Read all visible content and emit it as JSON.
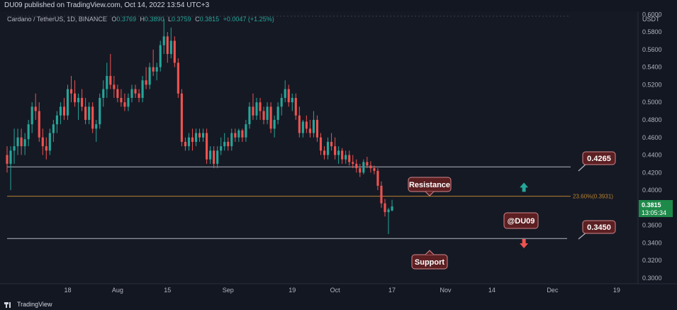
{
  "header": {
    "published": "DU09 published on TradingView.com, Oct 14, 2022 13:54 UTC+3"
  },
  "legend": {
    "symbol": "Cardano / TetherUS, 1D, BINANCE",
    "open_label": "O",
    "open": "0.3769",
    "high_label": "H",
    "high": "0.3890",
    "low_label": "L",
    "low": "0.3759",
    "close_label": "C",
    "close": "0.3815",
    "change": "+0.0047 (+1.25%)"
  },
  "footer": {
    "brand": "TradingView"
  },
  "colors": {
    "background": "#151924",
    "up": "#26a69a",
    "down": "#ef5350",
    "level_line": "#b2b5be",
    "fib_line": "#b7822f",
    "label_fill": "#5c1f22",
    "label_border": "#d4878a",
    "price_badge": "#1e8a4a"
  },
  "chart_data": {
    "type": "candlestick",
    "y_axis_title": "USDT",
    "ylim": [
      0.2935,
      0.6035
    ],
    "y_ticks": [
      0.3,
      0.32,
      0.34,
      0.36,
      0.38,
      0.4,
      0.42,
      0.44,
      0.46,
      0.48,
      0.5,
      0.52,
      0.54,
      0.56,
      0.58,
      0.6
    ],
    "y_tick_labels": [
      "0.3000",
      "0.3200",
      "0.3400",
      "0.3600",
      "0.3800",
      "0.4000",
      "0.4200",
      "0.4400",
      "0.4600",
      "0.4800",
      "0.5000",
      "0.5200",
      "0.5400",
      "0.5600",
      "0.5800",
      "0.6000"
    ],
    "x_axis": {
      "start_date": "2022-07-01",
      "end_date": "2022-12-25",
      "ticks": [
        {
          "label": "18",
          "date": "2022-07-18"
        },
        {
          "label": "Aug",
          "date": "2022-08-01"
        },
        {
          "label": "15",
          "date": "2022-08-15"
        },
        {
          "label": "Sep",
          "date": "2022-09-01"
        },
        {
          "label": "19",
          "date": "2022-09-19"
        },
        {
          "label": "Oct",
          "date": "2022-10-01"
        },
        {
          "label": "17",
          "date": "2022-10-17"
        },
        {
          "label": "Nov",
          "date": "2022-11-01"
        },
        {
          "label": "14",
          "date": "2022-11-14"
        },
        {
          "label": "Dec",
          "date": "2022-12-01"
        },
        {
          "label": "19",
          "date": "2022-12-19"
        }
      ]
    },
    "candles": [
      [
        "2022-07-01",
        0.44,
        0.45,
        0.42,
        0.43
      ],
      [
        "2022-07-02",
        0.43,
        0.45,
        0.4,
        0.445
      ],
      [
        "2022-07-03",
        0.445,
        0.47,
        0.43,
        0.45
      ],
      [
        "2022-07-04",
        0.45,
        0.47,
        0.44,
        0.46
      ],
      [
        "2022-07-05",
        0.46,
        0.47,
        0.44,
        0.45
      ],
      [
        "2022-07-06",
        0.45,
        0.465,
        0.44,
        0.458
      ],
      [
        "2022-07-07",
        0.458,
        0.48,
        0.45,
        0.475
      ],
      [
        "2022-07-08",
        0.475,
        0.5,
        0.465,
        0.495
      ],
      [
        "2022-07-09",
        0.495,
        0.51,
        0.48,
        0.49
      ],
      [
        "2022-07-10",
        0.49,
        0.5,
        0.455,
        0.46
      ],
      [
        "2022-07-11",
        0.46,
        0.47,
        0.44,
        0.45
      ],
      [
        "2022-07-12",
        0.45,
        0.46,
        0.435,
        0.445
      ],
      [
        "2022-07-13",
        0.445,
        0.47,
        0.44,
        0.465
      ],
      [
        "2022-07-14",
        0.465,
        0.48,
        0.455,
        0.475
      ],
      [
        "2022-07-15",
        0.475,
        0.49,
        0.465,
        0.485
      ],
      [
        "2022-07-16",
        0.485,
        0.5,
        0.475,
        0.495
      ],
      [
        "2022-07-17",
        0.495,
        0.505,
        0.48,
        0.485
      ],
      [
        "2022-07-18",
        0.485,
        0.52,
        0.48,
        0.515
      ],
      [
        "2022-07-19",
        0.515,
        0.53,
        0.5,
        0.51
      ],
      [
        "2022-07-20",
        0.51,
        0.525,
        0.495,
        0.5
      ],
      [
        "2022-07-21",
        0.5,
        0.51,
        0.48,
        0.505
      ],
      [
        "2022-07-22",
        0.505,
        0.515,
        0.49,
        0.495
      ],
      [
        "2022-07-23",
        0.495,
        0.505,
        0.475,
        0.48
      ],
      [
        "2022-07-24",
        0.48,
        0.5,
        0.475,
        0.495
      ],
      [
        "2022-07-25",
        0.495,
        0.5,
        0.465,
        0.47
      ],
      [
        "2022-07-26",
        0.47,
        0.48,
        0.455,
        0.475
      ],
      [
        "2022-07-27",
        0.475,
        0.51,
        0.47,
        0.505
      ],
      [
        "2022-07-28",
        0.505,
        0.525,
        0.495,
        0.515
      ],
      [
        "2022-07-29",
        0.515,
        0.545,
        0.505,
        0.53
      ],
      [
        "2022-07-30",
        0.53,
        0.555,
        0.515,
        0.52
      ],
      [
        "2022-07-31",
        0.52,
        0.53,
        0.505,
        0.515
      ],
      [
        "2022-08-01",
        0.515,
        0.52,
        0.5,
        0.505
      ],
      [
        "2022-08-02",
        0.505,
        0.515,
        0.495,
        0.5
      ],
      [
        "2022-08-03",
        0.5,
        0.51,
        0.49,
        0.495
      ],
      [
        "2022-08-04",
        0.495,
        0.51,
        0.49,
        0.505
      ],
      [
        "2022-08-05",
        0.505,
        0.52,
        0.5,
        0.515
      ],
      [
        "2022-08-06",
        0.515,
        0.52,
        0.505,
        0.51
      ],
      [
        "2022-08-07",
        0.51,
        0.515,
        0.5,
        0.505
      ],
      [
        "2022-08-08",
        0.505,
        0.53,
        0.5,
        0.525
      ],
      [
        "2022-08-09",
        0.525,
        0.54,
        0.515,
        0.52
      ],
      [
        "2022-08-10",
        0.52,
        0.545,
        0.515,
        0.54
      ],
      [
        "2022-08-11",
        0.54,
        0.56,
        0.53,
        0.535
      ],
      [
        "2022-08-12",
        0.535,
        0.545,
        0.525,
        0.54
      ],
      [
        "2022-08-13",
        0.54,
        0.57,
        0.535,
        0.565
      ],
      [
        "2022-08-14",
        0.565,
        0.595,
        0.555,
        0.575
      ],
      [
        "2022-08-15",
        0.575,
        0.58,
        0.545,
        0.555
      ],
      [
        "2022-08-16",
        0.555,
        0.585,
        0.55,
        0.57
      ],
      [
        "2022-08-17",
        0.57,
        0.575,
        0.54,
        0.545
      ],
      [
        "2022-08-18",
        0.545,
        0.55,
        0.505,
        0.51
      ],
      [
        "2022-08-19",
        0.51,
        0.515,
        0.45,
        0.455
      ],
      [
        "2022-08-20",
        0.455,
        0.46,
        0.445,
        0.45
      ],
      [
        "2022-08-21",
        0.45,
        0.465,
        0.445,
        0.46
      ],
      [
        "2022-08-22",
        0.46,
        0.47,
        0.445,
        0.455
      ],
      [
        "2022-08-23",
        0.455,
        0.47,
        0.45,
        0.465
      ],
      [
        "2022-08-24",
        0.465,
        0.47,
        0.455,
        0.46
      ],
      [
        "2022-08-25",
        0.46,
        0.47,
        0.455,
        0.465
      ],
      [
        "2022-08-26",
        0.465,
        0.47,
        0.43,
        0.435
      ],
      [
        "2022-08-27",
        0.435,
        0.45,
        0.43,
        0.445
      ],
      [
        "2022-08-28",
        0.445,
        0.45,
        0.425,
        0.43
      ],
      [
        "2022-08-29",
        0.43,
        0.45,
        0.425,
        0.445
      ],
      [
        "2022-08-30",
        0.445,
        0.46,
        0.44,
        0.45
      ],
      [
        "2022-08-31",
        0.45,
        0.465,
        0.445,
        0.455
      ],
      [
        "2022-09-01",
        0.455,
        0.46,
        0.445,
        0.45
      ],
      [
        "2022-09-02",
        0.45,
        0.47,
        0.445,
        0.465
      ],
      [
        "2022-09-03",
        0.465,
        0.47,
        0.455,
        0.46
      ],
      [
        "2022-09-04",
        0.46,
        0.47,
        0.455,
        0.468
      ],
      [
        "2022-09-05",
        0.468,
        0.47,
        0.455,
        0.46
      ],
      [
        "2022-09-06",
        0.46,
        0.48,
        0.455,
        0.475
      ],
      [
        "2022-09-07",
        0.475,
        0.5,
        0.47,
        0.495
      ],
      [
        "2022-09-08",
        0.495,
        0.51,
        0.48,
        0.485
      ],
      [
        "2022-09-09",
        0.485,
        0.505,
        0.48,
        0.5
      ],
      [
        "2022-09-10",
        0.5,
        0.505,
        0.48,
        0.49
      ],
      [
        "2022-09-11",
        0.49,
        0.495,
        0.475,
        0.48
      ],
      [
        "2022-09-12",
        0.48,
        0.5,
        0.475,
        0.495
      ],
      [
        "2022-09-13",
        0.495,
        0.5,
        0.465,
        0.47
      ],
      [
        "2022-09-14",
        0.47,
        0.485,
        0.46,
        0.48
      ],
      [
        "2022-09-15",
        0.48,
        0.5,
        0.475,
        0.495
      ],
      [
        "2022-09-16",
        0.495,
        0.51,
        0.485,
        0.505
      ],
      [
        "2022-09-17",
        0.505,
        0.525,
        0.5,
        0.515
      ],
      [
        "2022-09-18",
        0.515,
        0.52,
        0.495,
        0.5
      ],
      [
        "2022-09-19",
        0.5,
        0.51,
        0.49,
        0.505
      ],
      [
        "2022-09-20",
        0.505,
        0.51,
        0.48,
        0.485
      ],
      [
        "2022-09-21",
        0.485,
        0.495,
        0.46,
        0.465
      ],
      [
        "2022-09-22",
        0.465,
        0.48,
        0.46,
        0.478
      ],
      [
        "2022-09-23",
        0.478,
        0.485,
        0.465,
        0.47
      ],
      [
        "2022-09-24",
        0.47,
        0.48,
        0.46,
        0.465
      ],
      [
        "2022-09-25",
        0.465,
        0.49,
        0.46,
        0.48
      ],
      [
        "2022-09-26",
        0.48,
        0.485,
        0.455,
        0.46
      ],
      [
        "2022-09-27",
        0.46,
        0.465,
        0.44,
        0.445
      ],
      [
        "2022-09-28",
        0.445,
        0.45,
        0.435,
        0.44
      ],
      [
        "2022-09-29",
        0.44,
        0.46,
        0.435,
        0.455
      ],
      [
        "2022-09-30",
        0.455,
        0.465,
        0.445,
        0.45
      ],
      [
        "2022-10-01",
        0.45,
        0.46,
        0.435,
        0.44
      ],
      [
        "2022-10-02",
        0.44,
        0.45,
        0.43,
        0.445
      ],
      [
        "2022-10-03",
        0.445,
        0.448,
        0.43,
        0.435
      ],
      [
        "2022-10-04",
        0.435,
        0.445,
        0.43,
        0.44
      ],
      [
        "2022-10-05",
        0.44,
        0.445,
        0.428,
        0.432
      ],
      [
        "2022-10-06",
        0.432,
        0.44,
        0.425,
        0.43
      ],
      [
        "2022-10-07",
        0.43,
        0.435,
        0.42,
        0.425
      ],
      [
        "2022-10-08",
        0.425,
        0.43,
        0.415,
        0.42
      ],
      [
        "2022-10-09",
        0.42,
        0.435,
        0.418,
        0.432
      ],
      [
        "2022-10-10",
        0.432,
        0.438,
        0.425,
        0.428
      ],
      [
        "2022-10-11",
        0.428,
        0.433,
        0.42,
        0.425
      ],
      [
        "2022-10-12",
        0.425,
        0.428,
        0.418,
        0.422
      ],
      [
        "2022-10-13",
        0.422,
        0.425,
        0.4,
        0.405
      ],
      [
        "2022-10-14",
        0.405,
        0.41,
        0.38,
        0.385
      ],
      [
        "2022-10-15",
        0.385,
        0.39,
        0.37,
        0.375
      ],
      [
        "2022-10-16",
        0.375,
        0.38,
        0.35,
        0.378
      ],
      [
        "2022-10-17",
        0.3769,
        0.389,
        0.3759,
        0.3815
      ]
    ],
    "fib_level": {
      "value": 0.3931,
      "label": "23.60%(0.3931)"
    },
    "resistance": {
      "value": 0.4265,
      "label": "0.4265"
    },
    "support": {
      "value": 0.345,
      "label": "0.3450"
    },
    "current_price": {
      "value": 0.3815,
      "label": "0.3815",
      "countdown": "13:05:34"
    },
    "annotations": {
      "resistance_text": "Resistance",
      "support_text": "Support",
      "watermark": "@DU09"
    },
    "arrows": [
      {
        "direction": "up",
        "color": "#26a69a",
        "date": "2022-11-23",
        "price": 0.403
      },
      {
        "direction": "down",
        "color": "#ef5350",
        "date": "2022-11-23",
        "price": 0.3395
      }
    ]
  }
}
